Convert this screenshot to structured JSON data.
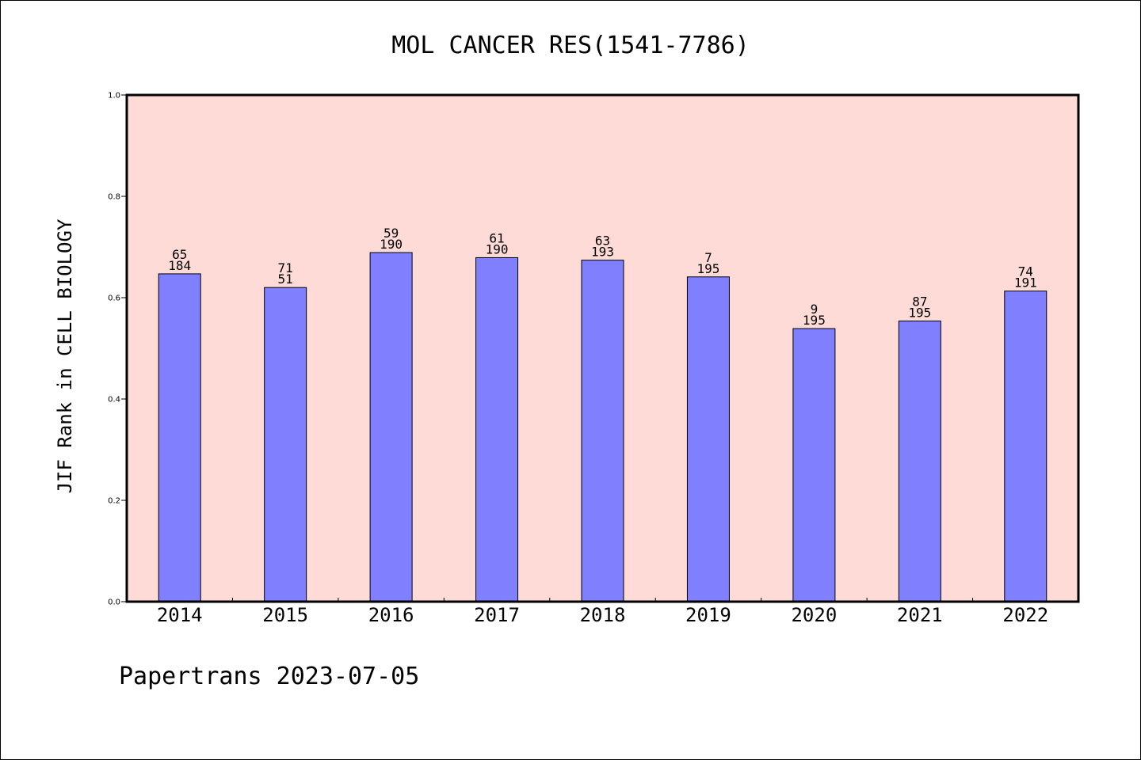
{
  "chart_data": {
    "type": "bar",
    "title": "MOL CANCER RES(1541-7786)",
    "ylabel": "JIF Rank in CELL BIOLOGY",
    "xlabel": "",
    "ylim": [
      0,
      1.0
    ],
    "yticks": [
      "0.0",
      "0.2",
      "0.4",
      "0.6",
      "0.8",
      "1.0"
    ],
    "grid": false,
    "categories": [
      "2014",
      "2015",
      "2016",
      "2017",
      "2018",
      "2019",
      "2020",
      "2021",
      "2022"
    ],
    "values": [
      0.647,
      0.62,
      0.689,
      0.679,
      0.674,
      0.641,
      0.539,
      0.554,
      0.613
    ],
    "label_top": [
      "65",
      "71",
      "59",
      "61",
      "63",
      "7",
      "9",
      "87",
      "74"
    ],
    "label_bottom": [
      "184",
      "51",
      "190",
      "190",
      "193",
      "195",
      "195",
      "195",
      "191"
    ],
    "colors": {
      "plot_bg": "#ffdbd8",
      "bar": "#8080ff"
    }
  },
  "footer": "Papertrans 2023-07-05"
}
